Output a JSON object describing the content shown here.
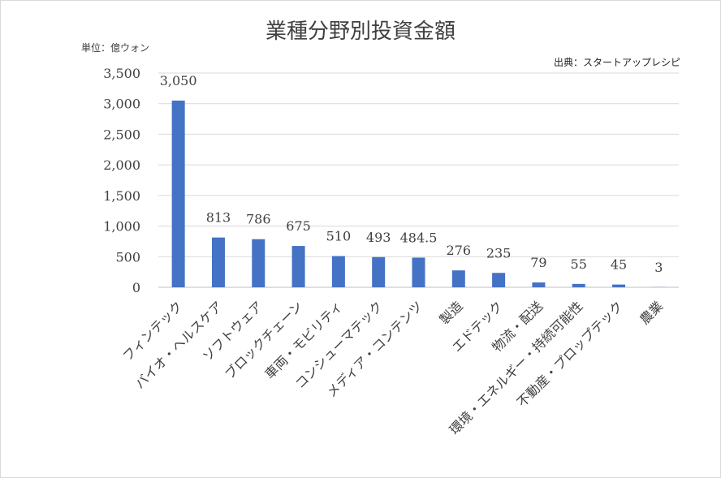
{
  "chart_data": {
    "type": "bar",
    "title": "業種分野別投資金額",
    "unit_label": "単位：億ウォン",
    "source": "出典：スタートアップレシピ",
    "categories": [
      "フィンテック",
      "バイオ・ヘルスケア",
      "ソフトウェア",
      "ブロックチェーン",
      "車両・モビリティ",
      "コンシューマテック",
      "メディア・コンテンツ",
      "製造",
      "エドテック",
      "物流・配送",
      "環境・エネルギー・持続可能性",
      "不動産・プロップテック",
      "農業"
    ],
    "values": [
      3050,
      813,
      786,
      675,
      510,
      493,
      484.5,
      276,
      235,
      79,
      55,
      45,
      3
    ],
    "value_labels": [
      "3,050",
      "813",
      "786",
      "675",
      "510",
      "493",
      "484.5",
      "276",
      "235",
      "79",
      "55",
      "45",
      "3"
    ],
    "ylim": [
      0,
      3500
    ],
    "yticks": [
      0,
      500,
      1000,
      1500,
      2000,
      2500,
      3000,
      3500
    ],
    "ytick_labels": [
      "0",
      "500",
      "1,000",
      "1,500",
      "2,000",
      "2,500",
      "3,000",
      "3,500"
    ],
    "grid": true,
    "bar_color": "#4472C4",
    "grid_color": "#d9d9d9"
  }
}
